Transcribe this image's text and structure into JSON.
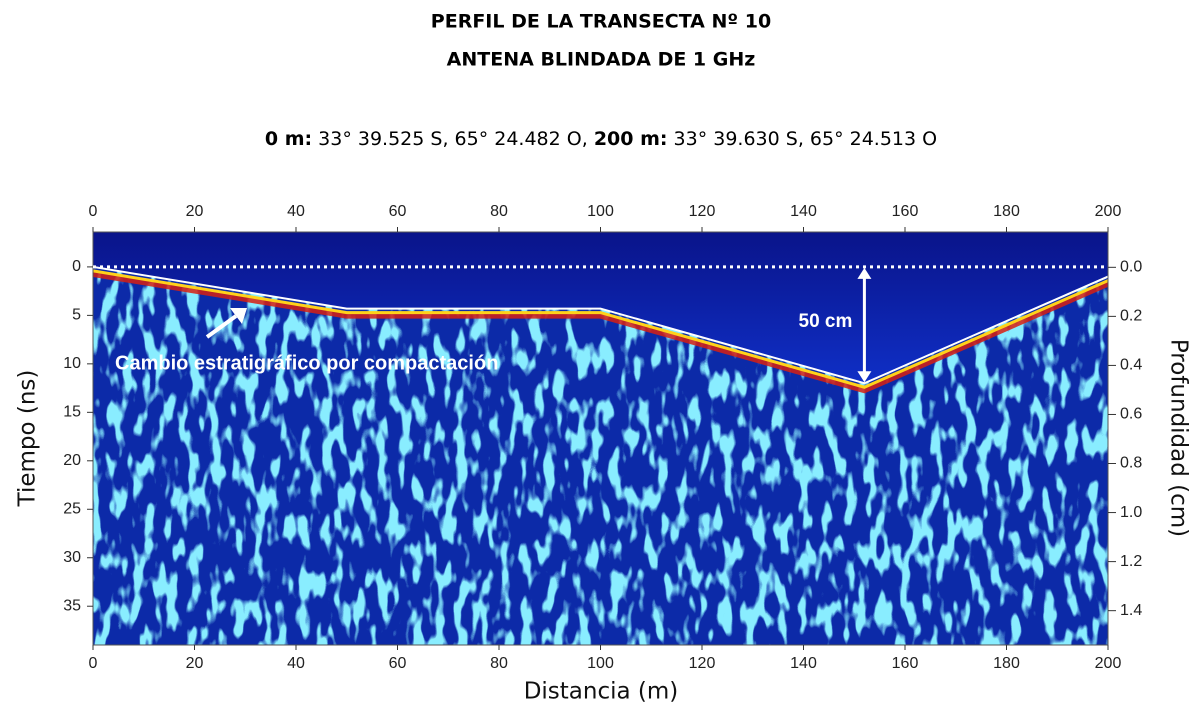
{
  "chart_data": {
    "type": "radargram",
    "title": "PERFIL DE LA TRANSECTA Nº 10",
    "subtitle": "ANTENA BLINDADA DE 1 GHz",
    "coordinates": [
      {
        "label": "0 m:",
        "text": "33° 39.525 S, 65° 24.482 O,"
      },
      {
        "label": "200 m:",
        "text": "33° 39.630 S, 65° 24.513 O"
      }
    ],
    "xlabel": "Distancia (m)",
    "ylabel": "Tiempo (ns)",
    "y2label": "Profundidad (cm)",
    "xlim": [
      0,
      200
    ],
    "xticks": [
      0,
      20,
      40,
      60,
      80,
      100,
      120,
      140,
      160,
      180,
      200
    ],
    "ylim": [
      -3.6,
      39
    ],
    "yticks": [
      0,
      5,
      10,
      15,
      20,
      25,
      30,
      35
    ],
    "y2lim": [
      -0.144,
      1.54
    ],
    "y2ticks": [
      {
        "value": 0,
        "label": "0.0"
      },
      0.2,
      0.4,
      0.6,
      0.8,
      {
        "value": 1,
        "label": "1.0"
      },
      1.2,
      1.4
    ],
    "x": [
      0,
      50,
      100,
      152,
      200
    ],
    "values": [
      0,
      4.3,
      4.3,
      12,
      1
    ],
    "color": "#ffffff",
    "annotations": [
      "Cambio estratigráfico por compactación",
      "50 cm"
    ]
  }
}
